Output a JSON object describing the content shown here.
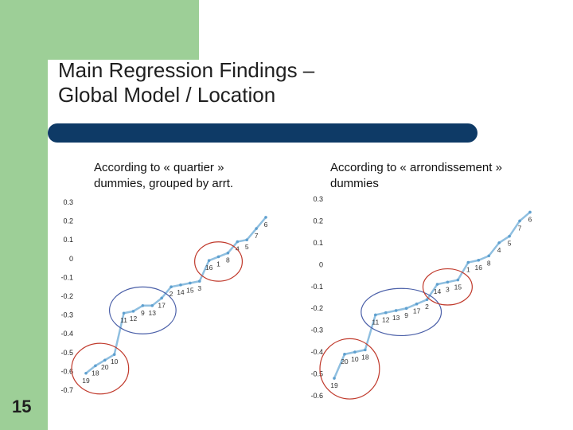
{
  "slide": {
    "title_line1": "Main Regression Findings –",
    "title_line2": "Global Model / Location",
    "number": "15"
  },
  "chart_data": [
    {
      "type": "line",
      "heading_line1": "According to « quartier »",
      "heading_line2": "dummies, grouped by arrt.",
      "ylim": [
        -0.7,
        0.3
      ],
      "yticks": [
        "0.3",
        "0.2",
        "0.1",
        "0",
        "-0.1",
        "-0.2",
        "-0.3",
        "-0.4",
        "-0.5",
        "-0.6",
        "-0.7"
      ],
      "color": "#8fbfe0",
      "points": [
        {
          "label": "19",
          "y": -0.61
        },
        {
          "label": "18",
          "y": -0.57
        },
        {
          "label": "20",
          "y": -0.54
        },
        {
          "label": "10",
          "y": -0.51
        },
        {
          "label": "11",
          "y": -0.29
        },
        {
          "label": "12",
          "y": -0.28
        },
        {
          "label": "9",
          "y": -0.25
        },
        {
          "label": "13",
          "y": -0.25
        },
        {
          "label": "17",
          "y": -0.21
        },
        {
          "label": "2",
          "y": -0.15
        },
        {
          "label": "14",
          "y": -0.14
        },
        {
          "label": "15",
          "y": -0.13
        },
        {
          "label": "3",
          "y": -0.12
        },
        {
          "label": "16",
          "y": -0.01
        },
        {
          "label": "1",
          "y": 0.01
        },
        {
          "label": "8",
          "y": 0.03
        },
        {
          "label": "4",
          "y": 0.09
        },
        {
          "label": "5",
          "y": 0.1
        },
        {
          "label": "7",
          "y": 0.16
        },
        {
          "label": "6",
          "y": 0.22
        }
      ],
      "circles": [
        {
          "label": "red",
          "color": "#c0392b"
        },
        {
          "label": "blue",
          "color": "#4a5fa8"
        },
        {
          "label": "red",
          "color": "#c0392b"
        }
      ]
    },
    {
      "type": "line",
      "heading_line1": "According to « arrondissement »",
      "heading_line2": "dummies",
      "ylim": [
        -0.6,
        0.3
      ],
      "yticks": [
        "0.3",
        "0.2",
        "0.1",
        "0",
        "-0.1",
        "-0.2",
        "-0.3",
        "-0.4",
        "-0.5",
        "-0.6"
      ],
      "color": "#8fbfe0",
      "points": [
        {
          "label": "19",
          "y": -0.52
        },
        {
          "label": "20",
          "y": -0.41
        },
        {
          "label": "10",
          "y": -0.4
        },
        {
          "label": "18",
          "y": -0.39
        },
        {
          "label": "11",
          "y": -0.23
        },
        {
          "label": "12",
          "y": -0.22
        },
        {
          "label": "13",
          "y": -0.21
        },
        {
          "label": "9",
          "y": -0.2
        },
        {
          "label": "17",
          "y": -0.18
        },
        {
          "label": "2",
          "y": -0.16
        },
        {
          "label": "14",
          "y": -0.09
        },
        {
          "label": "3",
          "y": -0.08
        },
        {
          "label": "15",
          "y": -0.07
        },
        {
          "label": "1",
          "y": 0.01
        },
        {
          "label": "16",
          "y": 0.02
        },
        {
          "label": "8",
          "y": 0.04
        },
        {
          "label": "4",
          "y": 0.1
        },
        {
          "label": "5",
          "y": 0.13
        },
        {
          "label": "7",
          "y": 0.2
        },
        {
          "label": "6",
          "y": 0.24
        }
      ],
      "circles": [
        {
          "label": "red",
          "color": "#c0392b"
        },
        {
          "label": "blue",
          "color": "#4a5fa8"
        },
        {
          "label": "red",
          "color": "#c0392b"
        }
      ]
    }
  ]
}
